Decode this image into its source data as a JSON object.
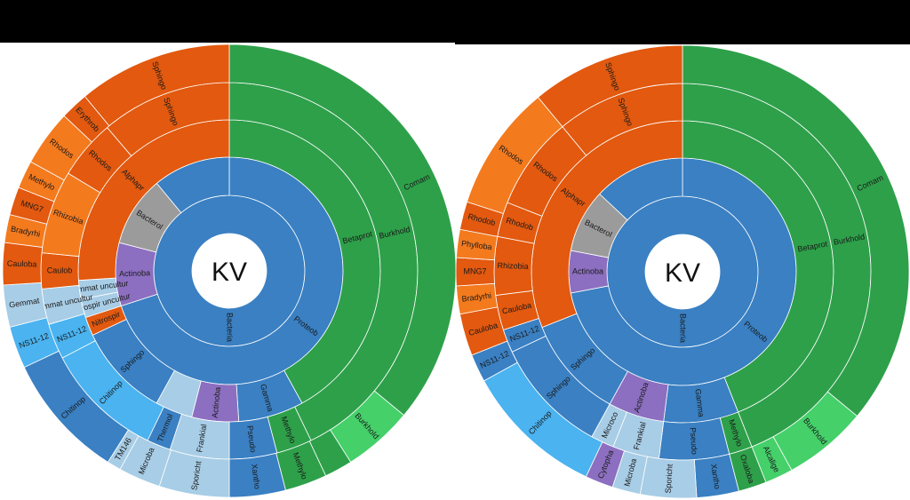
{
  "colors": {
    "Proteob": "#3a80c3",
    "Bacteria": "#3a80c3",
    "Betaprot": "#2ea04a",
    "Burkhold": "#2ea04a",
    "Comam": "#2ea04a",
    "BurkholdLight": "#45d06a",
    "Alphapr": "#e2590f",
    "Sphingo_a": "#e2590f",
    "Rhodos": "#f47a1e",
    "Gamma": "#3a80c3",
    "Actinoba": "#8c6fc0",
    "Actino_light": "#a8cde6",
    "Bacterol": "#9b9b9b",
    "Sphingo_b": "#3a80c3",
    "Chitinop": "#4ab3f0",
    "Nitrospir": "#a8cde6",
    "Gemmat": "#a8cde6"
  },
  "chart_data": [
    {
      "type": "sunburst",
      "title": "KV",
      "rings": [
        [
          {
            "label": "Bacteria",
            "value": 100,
            "color": "#3a80c3"
          }
        ],
        [
          {
            "label": "Proteob",
            "value": 70,
            "color": "#3a80c3"
          },
          {
            "label": "Actinoba",
            "value": 9,
            "color": "#8c6fc0"
          },
          {
            "label": "Bacterol",
            "value": 10,
            "color": "#9b9b9b"
          },
          {
            "label": "",
            "value": 11,
            "color": "#3a80c3"
          }
        ],
        [
          {
            "label": "Betaprot",
            "value": 42,
            "color": "#2ea04a"
          },
          {
            "label": "Gamma",
            "value": 7,
            "color": "#3a80c3"
          },
          {
            "label": "Actinoba",
            "value": 5,
            "color": "#8c6fc0"
          },
          {
            "label": "",
            "value": 4,
            "color": "#a8cde6"
          },
          {
            "label": "Sphingo",
            "value": 10,
            "color": "#3a80c3"
          },
          {
            "label": "Nitrospir",
            "value": 2,
            "color": "#e2590f"
          },
          {
            "label": "Nitrospir uncultur",
            "value": 2,
            "color": "#a8cde6"
          },
          {
            "label": "Gemmat uncultur",
            "value": 2,
            "color": "#a8cde6"
          },
          {
            "label": "Alphapr",
            "value": 26,
            "color": "#e2590f"
          }
        ],
        [
          {
            "label": "Burkhold",
            "value": 42,
            "color": "#2ea04a"
          },
          {
            "label": "Methylo",
            "value": 3,
            "color": "#2ea04a"
          },
          {
            "label": "Pseudo",
            "value": 4,
            "color": "#3a80c3"
          },
          {
            "label": "Frankial",
            "value": 5,
            "color": "#a8cde6"
          },
          {
            "label": "Thermol",
            "value": 2,
            "color": "#3a80c3"
          },
          {
            "label": "Chitinop",
            "value": 10,
            "color": "#4ab3f0"
          },
          {
            "label": "NS11-12",
            "value": 3,
            "color": "#4ab3f0"
          },
          {
            "label": "Gemmat uncultur",
            "value": 3,
            "color": "#a8cde6"
          },
          {
            "label": "Caulob",
            "value": 3,
            "color": "#e2590f"
          },
          {
            "label": "Rhizobia",
            "value": 7,
            "color": "#f47a1e"
          },
          {
            "label": "Rhodos",
            "value": 5,
            "color": "#e2590f"
          },
          {
            "label": "Sphingo",
            "value": 11,
            "color": "#e2590f"
          }
        ],
        [
          {
            "label": "Comam",
            "value": 36,
            "color": "#2ea04a"
          },
          {
            "label": "Burkhold",
            "value": 5,
            "color": "#45d06a"
          },
          {
            "label": "",
            "value": 2,
            "color": "#2ea04a"
          },
          {
            "label": "Methylo",
            "value": 3,
            "color": "#2ea04a"
          },
          {
            "label": "Xantho",
            "value": 4,
            "color": "#3a80c3"
          },
          {
            "label": "Sporicht",
            "value": 5,
            "color": "#a8cde6"
          },
          {
            "label": "Microba",
            "value": 3,
            "color": "#a8cde6"
          },
          {
            "label": "TM146",
            "value": 1,
            "color": "#a8cde6"
          },
          {
            "label": "Chitinop",
            "value": 9,
            "color": "#3a80c3"
          },
          {
            "label": "NS11-12",
            "value": 3,
            "color": "#4ab3f0"
          },
          {
            "label": "Gemmat",
            "value": 3,
            "color": "#a8cde6"
          },
          {
            "label": "Cauloba",
            "value": 3,
            "color": "#e2590f"
          },
          {
            "label": "Bradyrhi",
            "value": 2,
            "color": "#f47a1e"
          },
          {
            "label": "MNG7",
            "value": 2,
            "color": "#e2590f"
          },
          {
            "label": "Methylo",
            "value": 2,
            "color": "#f47a1e"
          },
          {
            "label": "Rhodos",
            "value": 4,
            "color": "#f47a1e"
          },
          {
            "label": "Erythrob",
            "value": 2,
            "color": "#e2590f"
          },
          {
            "label": "Sphingo",
            "value": 11,
            "color": "#e2590f"
          }
        ]
      ]
    },
    {
      "type": "sunburst",
      "title": "KV",
      "rings": [
        [
          {
            "label": "Bacteria",
            "value": 100,
            "color": "#3a80c3"
          }
        ],
        [
          {
            "label": "Proteob",
            "value": 72,
            "color": "#3a80c3"
          },
          {
            "label": "Actinoba",
            "value": 6,
            "color": "#8c6fc0"
          },
          {
            "label": "Bacterol",
            "value": 9,
            "color": "#9b9b9b"
          },
          {
            "label": "",
            "value": 13,
            "color": "#3a80c3"
          }
        ],
        [
          {
            "label": "Betaprot",
            "value": 44,
            "color": "#2ea04a"
          },
          {
            "label": "Gamma",
            "value": 8,
            "color": "#3a80c3"
          },
          {
            "label": "Actinoba",
            "value": 6,
            "color": "#8c6fc0"
          },
          {
            "label": "Sphingo",
            "value": 11,
            "color": "#3a80c3"
          },
          {
            "label": "Alphapr",
            "value": 31,
            "color": "#e2590f"
          }
        ],
        [
          {
            "label": "Burkhold",
            "value": 44,
            "color": "#2ea04a"
          },
          {
            "label": "Methylo",
            "value": 2,
            "color": "#2ea04a"
          },
          {
            "label": "Pseudo",
            "value": 6,
            "color": "#3a80c3"
          },
          {
            "label": "Frankial",
            "value": 4,
            "color": "#a8cde6"
          },
          {
            "label": "Microco",
            "value": 2,
            "color": "#a8cde6"
          },
          {
            "label": "Sphingo",
            "value": 10,
            "color": "#3a80c3"
          },
          {
            "label": "NS11-12",
            "value": 2,
            "color": "#3a80c3"
          },
          {
            "label": "Cauloba",
            "value": 3,
            "color": "#e2590f"
          },
          {
            "label": "Rhizobia",
            "value": 5,
            "color": "#e2590f"
          },
          {
            "label": "Rhodob",
            "value": 3,
            "color": "#e2590f"
          },
          {
            "label": "Rhodos",
            "value": 8,
            "color": "#e2590f"
          },
          {
            "label": "Sphingo",
            "value": 11,
            "color": "#e2590f"
          }
        ],
        [
          {
            "label": "Comam",
            "value": 36,
            "color": "#2ea04a"
          },
          {
            "label": "Burkhold",
            "value": 6,
            "color": "#45d06a"
          },
          {
            "label": "Alcalige",
            "value": 2,
            "color": "#45d06a"
          },
          {
            "label": "Oxaloba",
            "value": 2,
            "color": "#2ea04a"
          },
          {
            "label": "Xantho",
            "value": 3,
            "color": "#3a80c3"
          },
          {
            "label": "Sporicht",
            "value": 4,
            "color": "#a8cde6"
          },
          {
            "label": "Microba",
            "value": 2,
            "color": "#a8cde6"
          },
          {
            "label": "Cytopha",
            "value": 2,
            "color": "#8c6fc0"
          },
          {
            "label": "Chitinop",
            "value": 10,
            "color": "#4ab3f0"
          },
          {
            "label": "NS11-12",
            "value": 2,
            "color": "#3a80c3"
          },
          {
            "label": "Cauloba",
            "value": 3,
            "color": "#e2590f"
          },
          {
            "label": "Bradyrhi",
            "value": 2,
            "color": "#f47a1e"
          },
          {
            "label": "MNG7",
            "value": 2,
            "color": "#e2590f"
          },
          {
            "label": "Phylloba",
            "value": 2,
            "color": "#f47a1e"
          },
          {
            "label": "Rhodob",
            "value": 2,
            "color": "#e2590f"
          },
          {
            "label": "Rhodos",
            "value": 9,
            "color": "#f47a1e"
          },
          {
            "label": "Sphingo",
            "value": 11,
            "color": "#e2590f"
          }
        ]
      ]
    }
  ]
}
